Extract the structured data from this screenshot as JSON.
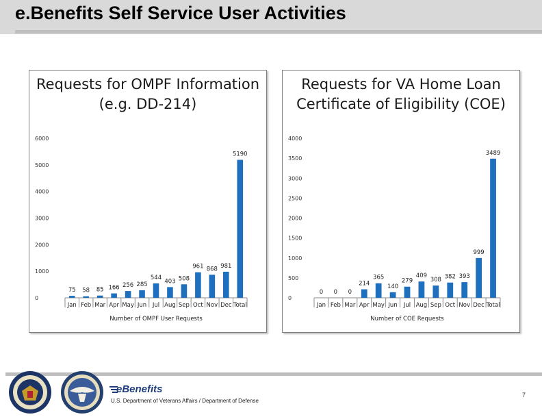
{
  "page": {
    "title": "e.Benefits Self Service User Activities",
    "page_number": "7"
  },
  "footer": {
    "brand": "eBenefits",
    "caption": "U.S. Department of Veterans Affairs / Department of Defense"
  },
  "chart_data": [
    {
      "type": "bar",
      "title": "Requests for OMPF Information (e.g. DD-214)",
      "xlabel": "Number of OMPF User Requests",
      "ylabel": "",
      "categories": [
        "Jan",
        "Feb",
        "Mar",
        "Apr",
        "May",
        "Jun",
        "Jul",
        "Aug",
        "Sep",
        "Oct",
        "Nov",
        "Dec",
        "Total"
      ],
      "values": [
        75,
        58,
        85,
        166,
        256,
        285,
        544,
        403,
        508,
        961,
        868,
        981,
        5190
      ],
      "ylim": [
        0,
        6000
      ],
      "yticks": [
        0,
        1000,
        2000,
        3000,
        4000,
        5000,
        6000
      ],
      "bar_color": "#1f6fbf"
    },
    {
      "type": "bar",
      "title": "Requests for VA Home Loan Certificate of Eligibility (COE)",
      "xlabel": "Number of COE Requests",
      "ylabel": "",
      "categories": [
        "Jan",
        "Feb",
        "Mar",
        "Apr",
        "May",
        "Jun",
        "Jul",
        "Aug",
        "Sep",
        "Oct",
        "Nov",
        "Dec",
        "Total"
      ],
      "values": [
        0,
        0,
        0,
        214,
        365,
        140,
        279,
        409,
        308,
        382,
        393,
        999,
        3489
      ],
      "ylim": [
        0,
        4000
      ],
      "yticks": [
        0,
        500,
        1000,
        1500,
        2000,
        2500,
        3000,
        3500,
        4000
      ],
      "bar_color": "#1f6fbf"
    }
  ]
}
